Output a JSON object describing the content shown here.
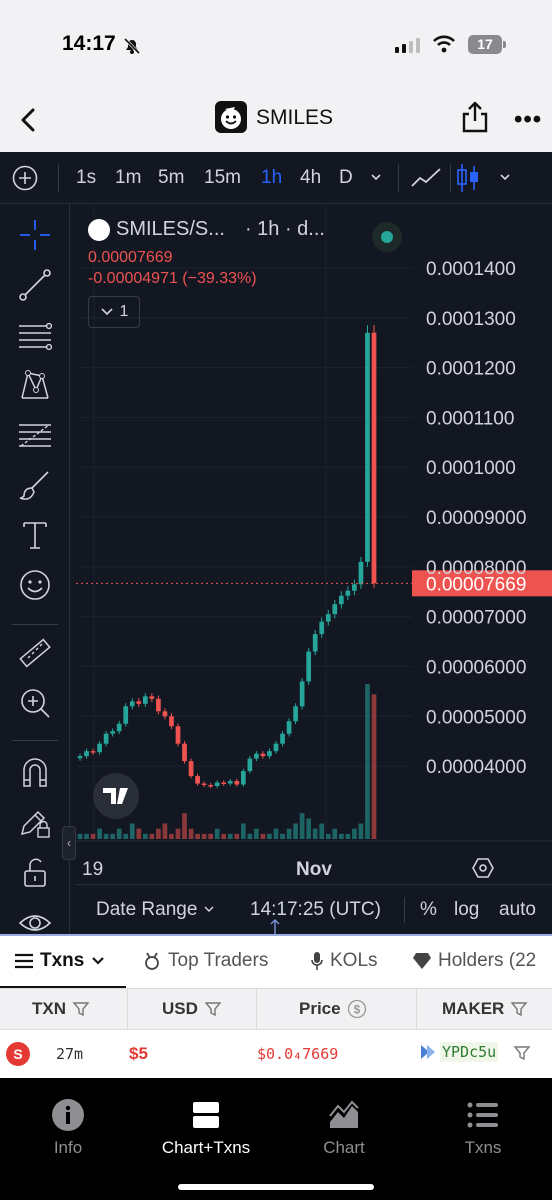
{
  "status_bar": {
    "time": "14:17",
    "battery": "17"
  },
  "nav": {
    "title": "SMILES"
  },
  "timeframes": {
    "items": [
      "1s",
      "1m",
      "5m",
      "15m",
      "1h",
      "4h",
      "D"
    ],
    "active": "1h"
  },
  "legend": {
    "symbol": "SMILES/S...",
    "interval": "· 1h · d...",
    "last_price": "0.00007669",
    "change": "-0.00004971 (−39.33%)",
    "indicator_count": "1"
  },
  "price_axis": {
    "ticks": [
      "0.0001400",
      "0.0001300",
      "0.0001200",
      "0.0001100",
      "0.0001000",
      "0.00009000",
      "0.00008000",
      "0.00007000",
      "0.00006000",
      "0.00005000",
      "0.00004000"
    ],
    "current_label": "0.00007669"
  },
  "time_axis": {
    "ticks": [
      "19",
      "Nov"
    ]
  },
  "bottom_controls": {
    "date_range": "Date Range",
    "clock": "14:17:25 (UTC)",
    "percent": "%",
    "log": "log",
    "auto": "auto"
  },
  "txn_tabs": {
    "txns": "Txns",
    "top_traders": "Top Traders",
    "kols": "KOLs",
    "holders": "Holders (22"
  },
  "table": {
    "headers": [
      "TXN",
      "USD",
      "Price",
      "MAKER"
    ],
    "rows": [
      {
        "side": "S",
        "age": "27m",
        "usd": "$5",
        "price": "$0.0₄7669",
        "maker": "YPDc5u"
      }
    ]
  },
  "bottom_nav": {
    "items": [
      "Info",
      "Chart+Txns",
      "Chart",
      "Txns"
    ],
    "active": "Chart+Txns"
  },
  "colors": {
    "up": "#26a69a",
    "down": "#ef5350",
    "accent": "#2962ff",
    "chart_bg": "#131722"
  },
  "chart_data": {
    "type": "candlestick",
    "symbol": "SMILES/S...",
    "interval": "1h",
    "x_ticks": [
      "19",
      "Nov"
    ],
    "ylim": [
      3.5e-05,
      0.000143
    ],
    "y_ticks": [
      0.00014,
      0.00013,
      0.00012,
      0.00011,
      0.0001,
      9e-05,
      8e-05,
      7e-05,
      6e-05,
      5e-05,
      4e-05
    ],
    "last_price": 7.669e-05,
    "close": [
      4.2e-05,
      4.3e-05,
      4.28e-05,
      4.45e-05,
      4.65e-05,
      4.7e-05,
      4.85e-05,
      5.2e-05,
      5.3e-05,
      5.25e-05,
      5.4e-05,
      5.35e-05,
      5.1e-05,
      5e-05,
      4.8e-05,
      4.45e-05,
      4.1e-05,
      3.8e-05,
      3.65e-05,
      3.62e-05,
      3.6e-05,
      3.67e-05,
      3.65e-05,
      3.7e-05,
      3.63e-05,
      3.9e-05,
      4.15e-05,
      4.25e-05,
      4.2e-05,
      4.3e-05,
      4.45e-05,
      4.65e-05,
      4.9e-05,
      5.2e-05,
      5.7e-05,
      6.3e-05,
      6.65e-05,
      6.9e-05,
      7.05e-05,
      7.25e-05,
      7.42e-05,
      7.52e-05,
      7.65e-05,
      8.1e-05,
      0.000127,
      7.669e-05
    ],
    "volume": [
      1,
      1,
      1,
      2,
      1,
      1,
      2,
      1,
      3,
      2,
      1,
      1,
      2,
      3,
      1,
      2,
      5,
      2,
      1,
      1,
      1,
      2,
      1,
      1,
      1,
      3,
      1,
      2,
      1,
      1,
      2,
      1,
      2,
      3,
      5,
      4,
      2,
      3,
      1,
      2,
      1,
      1,
      2,
      3,
      30,
      28
    ]
  }
}
